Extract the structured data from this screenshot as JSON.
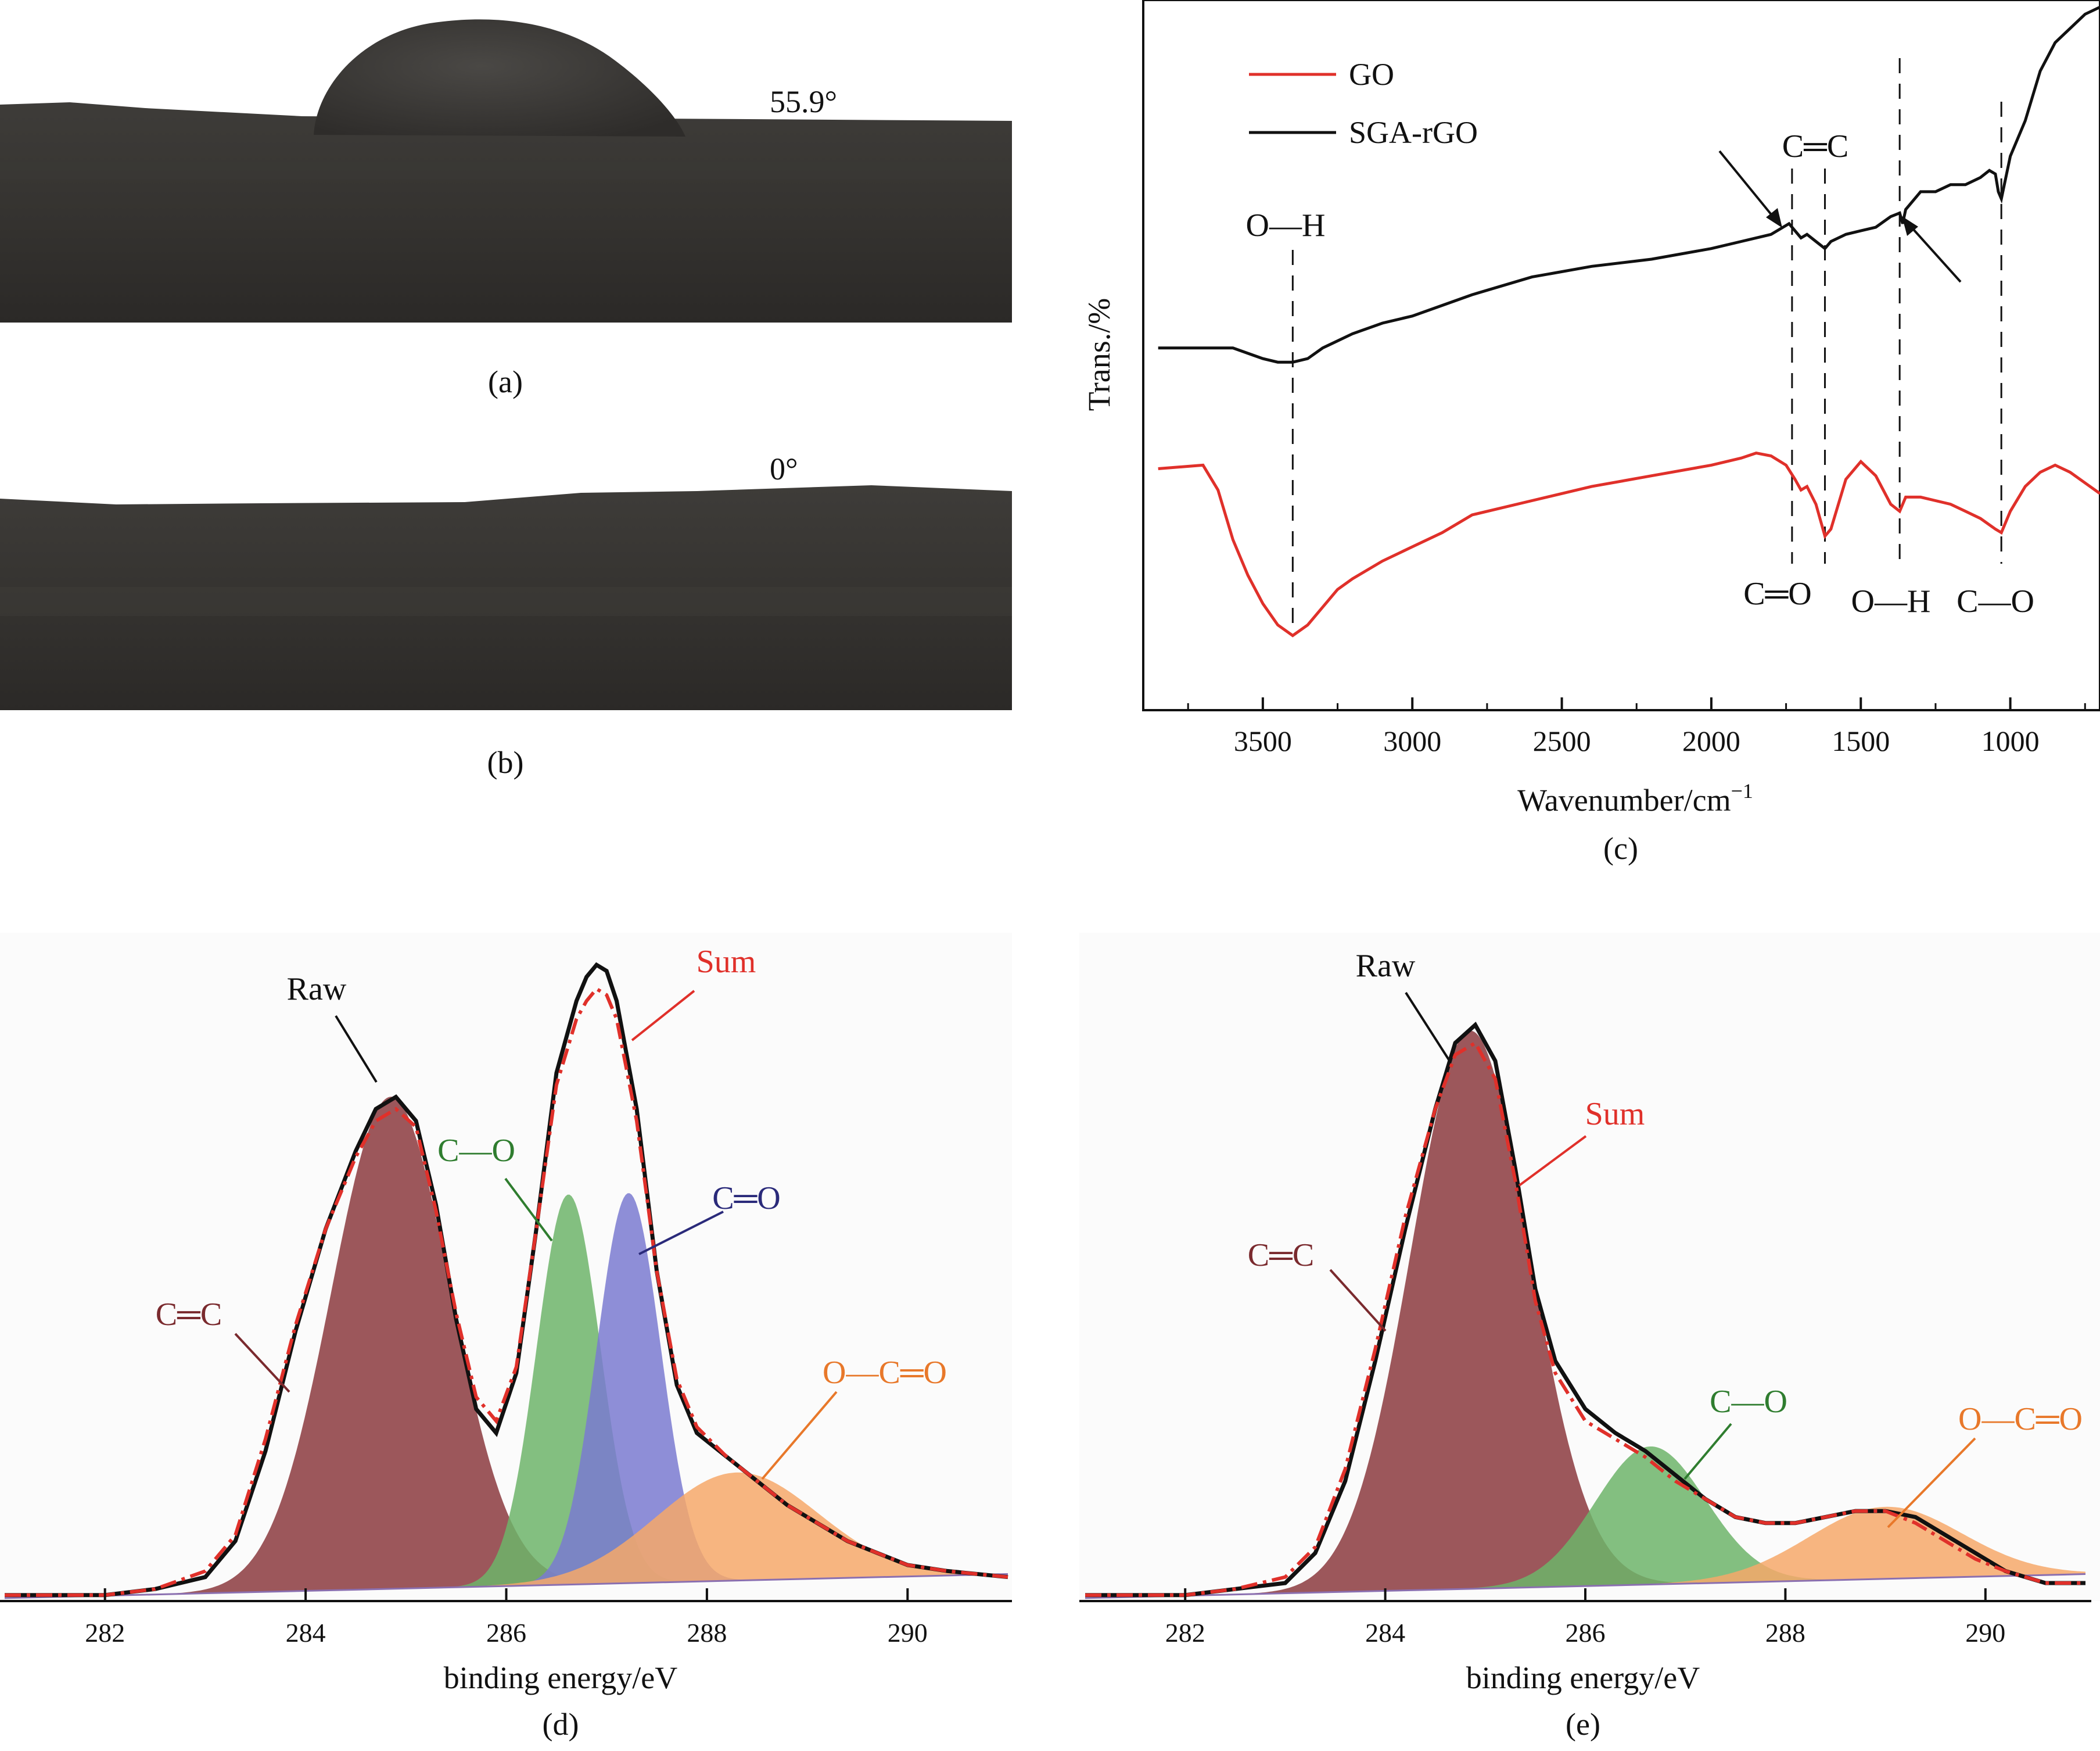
{
  "figure": {
    "panel_a": {
      "label": "(a)",
      "angle": "55.9°"
    },
    "panel_b": {
      "label": "(b)",
      "angle": "0°"
    }
  },
  "colors": {
    "go": "#e0302a",
    "sga": "#111111",
    "cc": "#8b3a3e",
    "co": "#6db46a",
    "cdo": "#7a7ad0",
    "occo": "#f6a86a",
    "label_cc": "#7a2a2e",
    "label_co": "#2f7d2f",
    "label_cdo": "#2a2a7a",
    "label_occo": "#e8782a",
    "label_sum": "#e0302a"
  },
  "chart_data": [
    {
      "type": "line",
      "panel": "(c)",
      "xlabel": "Wavenumber/cm",
      "xlabel_sup": "−1",
      "ylabel": "Trans./%",
      "xlim": [
        3900,
        700
      ],
      "ylim": [
        0,
        100
      ],
      "xticks": [
        3500,
        3000,
        2500,
        2000,
        1500,
        1000
      ],
      "tick_labels": [
        "3500",
        "3000",
        "2500",
        "2000",
        "1500",
        "1000"
      ],
      "legend": [
        "GO",
        "SGA-rGO"
      ],
      "series": [
        {
          "name": "GO",
          "x": [
            3850,
            3700,
            3650,
            3600,
            3550,
            3500,
            3450,
            3400,
            3350,
            3300,
            3250,
            3200,
            3100,
            3000,
            2900,
            2800,
            2600,
            2400,
            2200,
            2000,
            1900,
            1850,
            1800,
            1750,
            1720,
            1700,
            1680,
            1650,
            1620,
            1600,
            1550,
            1500,
            1450,
            1400,
            1370,
            1350,
            1300,
            1250,
            1200,
            1150,
            1100,
            1050,
            1030,
            1000,
            950,
            900,
            850,
            800,
            750,
            700
          ],
          "y": [
            34,
            34.5,
            31,
            24,
            19,
            15,
            12,
            10.5,
            12,
            14.5,
            17,
            18.5,
            21,
            23,
            25,
            27.5,
            29.5,
            31.5,
            33,
            34.5,
            35.5,
            36.2,
            35.8,
            34.5,
            32.5,
            31,
            31.5,
            29,
            24.5,
            25.5,
            32.5,
            35,
            33,
            29,
            28,
            30,
            30,
            29.5,
            29,
            28,
            27,
            25.5,
            25,
            28,
            31.5,
            33.5,
            34.5,
            33.5,
            32,
            30.5
          ]
        },
        {
          "name": "SGA-rGO",
          "x": [
            3850,
            3700,
            3600,
            3500,
            3450,
            3400,
            3350,
            3300,
            3200,
            3100,
            3000,
            2900,
            2800,
            2600,
            2400,
            2200,
            2000,
            1900,
            1800,
            1760,
            1740,
            1720,
            1700,
            1680,
            1650,
            1620,
            1600,
            1550,
            1500,
            1450,
            1400,
            1370,
            1360,
            1350,
            1300,
            1250,
            1200,
            1150,
            1100,
            1070,
            1050,
            1040,
            1030,
            1020,
            1000,
            950,
            900,
            850,
            800,
            750,
            700
          ],
          "y": [
            51,
            51,
            51,
            49.5,
            49,
            49,
            49.5,
            51,
            53,
            54.5,
            55.5,
            57,
            58.5,
            61,
            62.5,
            63.5,
            65,
            66,
            67,
            68,
            68.5,
            67.5,
            66.5,
            67,
            66,
            65,
            66,
            67,
            67.5,
            68,
            69.5,
            70,
            68.5,
            70.5,
            73,
            73,
            74,
            74,
            75,
            76,
            75.5,
            73,
            72,
            74,
            78,
            83,
            90,
            94,
            96,
            98,
            99
          ]
        }
      ],
      "annotations": {
        "oh_top": "O—H",
        "cc_top": "C═C",
        "co_bottom": "C═O",
        "oh_bottom": "O—H",
        "c_o_bottom": "C—O"
      },
      "dashed_lines_at": [
        3400,
        1730,
        1620,
        1370,
        1030
      ],
      "arrows_at": [
        1730,
        1370
      ]
    },
    {
      "type": "area",
      "panel": "(d)",
      "xlabel": "binding energy/eV",
      "xlim": [
        281,
        291
      ],
      "ylim": [
        0,
        1.07
      ],
      "xticks": [
        282,
        284,
        286,
        288,
        290
      ],
      "tick_labels": [
        "282",
        "284",
        "286",
        "288",
        "290"
      ],
      "components": [
        {
          "name": "C═C",
          "center": 284.85,
          "fwhm": 1.4,
          "height": 0.82,
          "color": "#8b3a3e"
        },
        {
          "name": "C—O",
          "center": 286.62,
          "fwhm": 0.75,
          "height": 0.65,
          "color": "#6db46a"
        },
        {
          "name": "C═O",
          "center": 287.22,
          "fwhm": 0.75,
          "height": 0.65,
          "color": "#7a7ad0"
        },
        {
          "name": "O—C═O",
          "center": 288.3,
          "fwhm": 1.9,
          "height": 0.18,
          "color": "#f6a86a"
        }
      ],
      "series": [
        {
          "name": "Raw",
          "x": [
            281.0,
            282.0,
            282.5,
            283.0,
            283.3,
            283.6,
            283.9,
            284.2,
            284.5,
            284.7,
            284.9,
            285.1,
            285.3,
            285.5,
            285.7,
            285.9,
            286.1,
            286.3,
            286.5,
            286.7,
            286.8,
            286.9,
            287.0,
            287.1,
            287.3,
            287.5,
            287.7,
            287.9,
            288.2,
            288.5,
            288.8,
            289.1,
            289.4,
            289.7,
            290.0,
            290.4,
            291.0
          ],
          "y": [
            0.01,
            0.01,
            0.02,
            0.04,
            0.1,
            0.25,
            0.45,
            0.62,
            0.75,
            0.82,
            0.84,
            0.8,
            0.66,
            0.47,
            0.32,
            0.28,
            0.38,
            0.62,
            0.88,
            1.0,
            1.04,
            1.06,
            1.05,
            1.0,
            0.82,
            0.55,
            0.36,
            0.28,
            0.24,
            0.2,
            0.16,
            0.13,
            0.1,
            0.08,
            0.06,
            0.05,
            0.04
          ]
        },
        {
          "name": "Sum",
          "x": [
            281.0,
            282.0,
            282.5,
            283.0,
            283.3,
            283.6,
            283.9,
            284.2,
            284.5,
            284.7,
            284.9,
            285.1,
            285.3,
            285.5,
            285.7,
            285.9,
            286.1,
            286.3,
            286.5,
            286.7,
            286.8,
            286.9,
            287.0,
            287.1,
            287.3,
            287.5,
            287.7,
            287.9,
            288.2,
            288.5,
            288.8,
            289.1,
            289.4,
            289.7,
            290.0,
            290.4,
            291.0
          ],
          "y": [
            0.01,
            0.01,
            0.02,
            0.05,
            0.11,
            0.27,
            0.46,
            0.62,
            0.74,
            0.8,
            0.82,
            0.79,
            0.65,
            0.48,
            0.34,
            0.3,
            0.39,
            0.62,
            0.86,
            0.97,
            1.0,
            1.02,
            1.01,
            0.97,
            0.8,
            0.55,
            0.37,
            0.29,
            0.24,
            0.2,
            0.16,
            0.13,
            0.1,
            0.08,
            0.06,
            0.05,
            0.04
          ]
        }
      ],
      "labels": {
        "raw": "Raw",
        "sum": "Sum",
        "cc": "C═C",
        "co": "C—O",
        "cdo": "C═O",
        "occo": "O—C═O"
      }
    },
    {
      "type": "area",
      "panel": "(e)",
      "xlabel": "binding energy/eV",
      "xlim": [
        281,
        291
      ],
      "ylim": [
        0,
        1.07
      ],
      "xticks": [
        282,
        284,
        286,
        288,
        290
      ],
      "tick_labels": [
        "282",
        "284",
        "286",
        "288",
        "290"
      ],
      "components": [
        {
          "name": "C═C",
          "center": 284.85,
          "fwhm": 1.4,
          "height": 0.93,
          "color": "#8b3a3e"
        },
        {
          "name": "C—O",
          "center": 286.65,
          "fwhm": 1.3,
          "height": 0.23,
          "color": "#6db46a"
        },
        {
          "name": "O—C═O",
          "center": 289.0,
          "fwhm": 1.8,
          "height": 0.12,
          "color": "#f6a86a"
        }
      ],
      "series": [
        {
          "name": "Raw",
          "x": [
            281.0,
            282.0,
            282.5,
            283.0,
            283.3,
            283.6,
            283.9,
            284.2,
            284.5,
            284.7,
            284.9,
            285.1,
            285.3,
            285.5,
            285.7,
            286.0,
            286.3,
            286.6,
            286.9,
            287.2,
            287.5,
            287.8,
            288.1,
            288.4,
            288.7,
            289.0,
            289.3,
            289.6,
            289.9,
            290.2,
            290.6,
            291.0
          ],
          "y": [
            0.01,
            0.01,
            0.02,
            0.03,
            0.08,
            0.2,
            0.4,
            0.62,
            0.82,
            0.93,
            0.96,
            0.9,
            0.72,
            0.52,
            0.4,
            0.32,
            0.28,
            0.25,
            0.21,
            0.17,
            0.14,
            0.13,
            0.13,
            0.14,
            0.15,
            0.15,
            0.14,
            0.11,
            0.08,
            0.05,
            0.03,
            0.03
          ]
        },
        {
          "name": "Sum",
          "x": [
            281.0,
            282.0,
            282.5,
            283.0,
            283.3,
            283.6,
            283.9,
            284.2,
            284.5,
            284.7,
            284.9,
            285.1,
            285.3,
            285.5,
            285.7,
            286.0,
            286.3,
            286.6,
            286.9,
            287.2,
            287.5,
            287.8,
            288.1,
            288.4,
            288.7,
            289.0,
            289.3,
            289.6,
            289.9,
            290.2,
            290.6,
            291.0
          ],
          "y": [
            0.01,
            0.01,
            0.02,
            0.04,
            0.09,
            0.22,
            0.42,
            0.64,
            0.82,
            0.91,
            0.93,
            0.87,
            0.7,
            0.5,
            0.38,
            0.3,
            0.27,
            0.24,
            0.2,
            0.17,
            0.14,
            0.13,
            0.13,
            0.14,
            0.15,
            0.15,
            0.13,
            0.1,
            0.07,
            0.05,
            0.03,
            0.03
          ]
        }
      ],
      "labels": {
        "raw": "Raw",
        "sum": "Sum",
        "cc": "C═C",
        "co": "C—O",
        "occo": "O—C═O"
      }
    }
  ]
}
